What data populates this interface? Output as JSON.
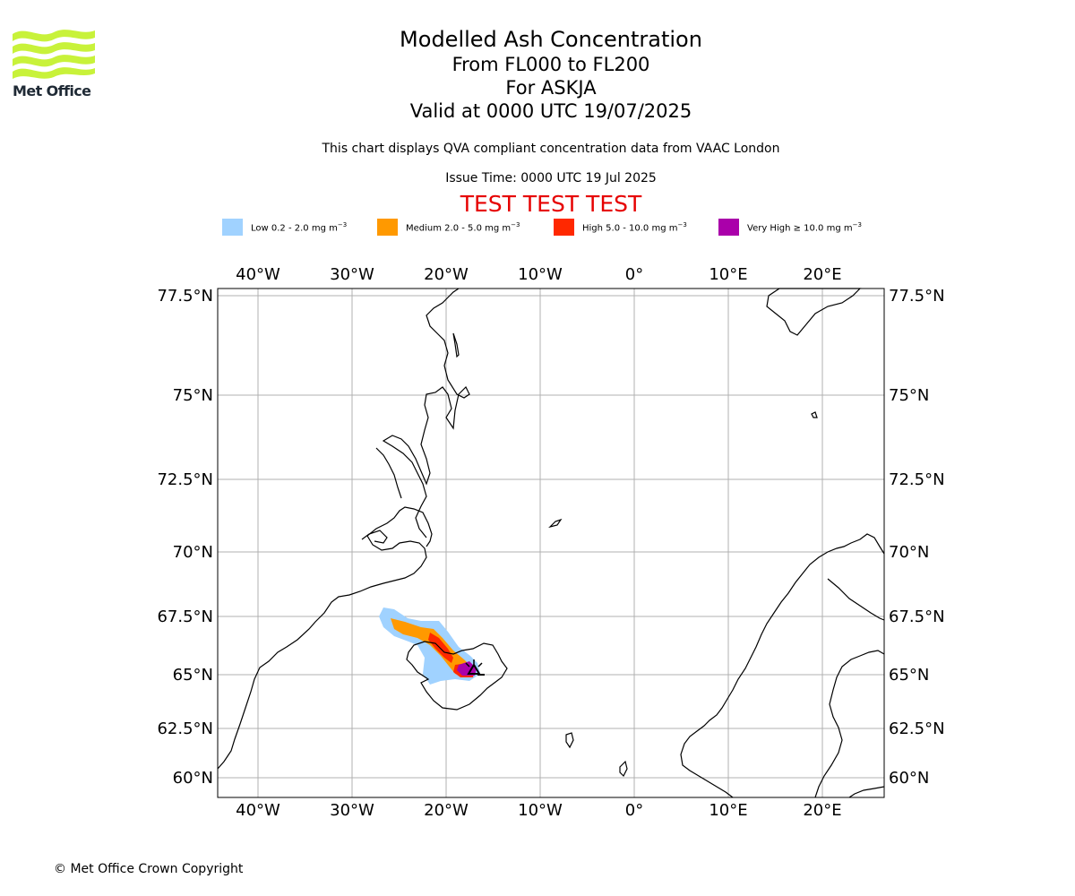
{
  "brand": {
    "name": "Met Office",
    "color": "#c8f23a"
  },
  "header": {
    "title": "Modelled Ash Concentration",
    "levels": "From FL000 to FL200",
    "volcano": "For ASKJA",
    "valid": "Valid at 0000 UTC 19/07/2025",
    "subtitle": "This chart displays QVA compliant concentration data from VAAC London",
    "issue_time": "Issue Time: 0000 UTC 19 Jul 2025",
    "test_banner": "TEST TEST TEST"
  },
  "legend": [
    {
      "label": "Low 0.2 - 2.0 mg m",
      "sup": "−3",
      "color": "#a0d2ff"
    },
    {
      "label": "Medium 2.0 - 5.0 mg m",
      "sup": "−3",
      "color": "#ff9900"
    },
    {
      "label": "High 5.0 - 10.0 mg m",
      "sup": "−3",
      "color": "#ff2800"
    },
    {
      "label": "Very High  ≥  10.0 mg m",
      "sup": "−3",
      "color": "#aa00aa"
    }
  ],
  "map": {
    "longitude_ticks": [
      "40°W",
      "30°W",
      "20°W",
      "10°W",
      "0°",
      "10°E",
      "20°E"
    ],
    "latitude_ticks": [
      "77.5°N",
      "75°N",
      "72.5°N",
      "70°N",
      "67.5°N",
      "65°N",
      "62.5°N",
      "60°N"
    ],
    "volcano_marker": "triangle-icon",
    "gridlines": true
  },
  "footer": {
    "copyright": "© Met Office Crown Copyright"
  }
}
